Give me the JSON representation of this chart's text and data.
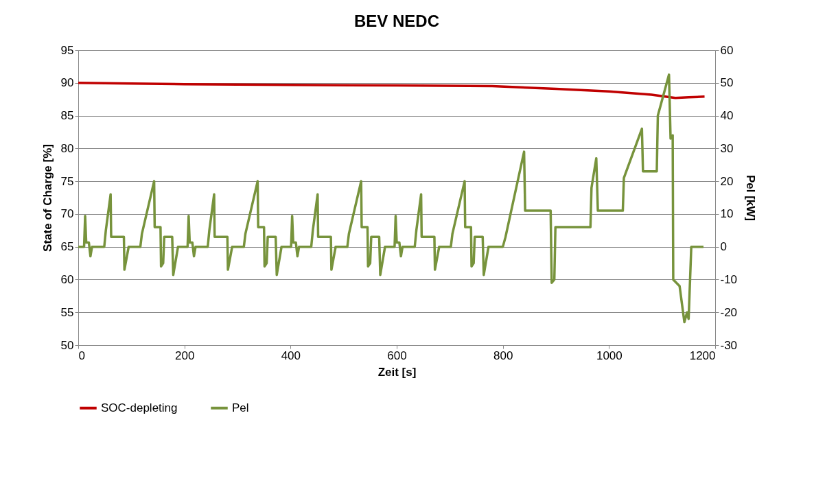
{
  "chart_data": {
    "type": "line",
    "title": "BEV NEDC",
    "xlabel": "Zeit [s]",
    "ylabel": "State of Charge [%]",
    "y2label": "Pel [kW]",
    "xlim": [
      0,
      1200
    ],
    "xticks": [
      0,
      200,
      400,
      600,
      800,
      1000,
      1200
    ],
    "ylim": [
      50,
      95
    ],
    "yticks": [
      50,
      55,
      60,
      65,
      70,
      75,
      80,
      85,
      90,
      95
    ],
    "y2lim": [
      -30,
      60
    ],
    "y2ticks": [
      -30,
      -20,
      -10,
      0,
      10,
      20,
      30,
      40,
      50,
      60
    ],
    "grid": "y",
    "legend": "bottom",
    "line_style": "solid",
    "series": [
      {
        "name": "SOC-depleting",
        "color": "#c00000",
        "axis": "y",
        "x": [
          0,
          100,
          200,
          400,
          600,
          780,
          900,
          1000,
          1080,
          1125,
          1150,
          1180
        ],
        "values": [
          90.0,
          89.9,
          89.8,
          89.7,
          89.6,
          89.5,
          89.1,
          88.7,
          88.2,
          87.7,
          87.8,
          87.9
        ]
      },
      {
        "name": "Pel",
        "color": "#77933c",
        "axis": "y2",
        "x": [
          0,
          11,
          13,
          15,
          20,
          23,
          26,
          49,
          52,
          61,
          62,
          86,
          87,
          95,
          117,
          120,
          143,
          144,
          155,
          156,
          160,
          162,
          177,
          179,
          188,
          195,
          206,
          208,
          210,
          215,
          218,
          221,
          244,
          247,
          256,
          257,
          281,
          282,
          290,
          312,
          315,
          338,
          339,
          350,
          351,
          355,
          357,
          372,
          374,
          383,
          390,
          401,
          403,
          405,
          410,
          413,
          416,
          439,
          442,
          451,
          452,
          476,
          477,
          485,
          507,
          510,
          533,
          534,
          545,
          546,
          550,
          552,
          567,
          569,
          578,
          585,
          596,
          598,
          600,
          605,
          608,
          611,
          634,
          637,
          646,
          647,
          671,
          672,
          680,
          702,
          705,
          728,
          729,
          740,
          741,
          745,
          747,
          762,
          764,
          773,
          780,
          800,
          805,
          840,
          842,
          890,
          892,
          897,
          899,
          965,
          967,
          976,
          979,
          1026,
          1028,
          1062,
          1064,
          1090,
          1092,
          1113,
          1116,
          1120,
          1121,
          1133,
          1142,
          1147,
          1150,
          1155,
          1178
        ],
        "values": [
          0,
          0,
          9.4,
          1.3,
          1.3,
          -2.9,
          0,
          0,
          5,
          16,
          3,
          3,
          -7,
          0,
          0,
          4,
          20,
          6,
          6,
          -6,
          -5,
          3,
          3,
          -8.6,
          0,
          0,
          0,
          9.4,
          1.3,
          1.3,
          -2.9,
          0,
          0,
          5,
          16,
          3,
          3,
          -7,
          0,
          0,
          4,
          20,
          6,
          6,
          -6,
          -5,
          3,
          3,
          -8.6,
          0,
          0,
          0,
          9.4,
          1.3,
          1.3,
          -2.9,
          0,
          0,
          5,
          16,
          3,
          3,
          -7,
          0,
          0,
          4,
          20,
          6,
          6,
          -6,
          -5,
          3,
          3,
          -8.6,
          0,
          0,
          0,
          9.4,
          1.3,
          1.3,
          -2.9,
          0,
          0,
          5,
          16,
          3,
          3,
          -7,
          0,
          0,
          4,
          20,
          6,
          6,
          -6,
          -5,
          3,
          3,
          -8.6,
          0,
          0,
          0,
          3,
          29,
          11,
          11,
          -11,
          -10,
          6,
          6,
          18,
          27,
          11,
          11,
          21,
          36,
          23,
          23,
          40,
          52.5,
          33,
          34,
          -10,
          -12,
          -23,
          -20,
          -22,
          0,
          0
        ]
      }
    ]
  }
}
